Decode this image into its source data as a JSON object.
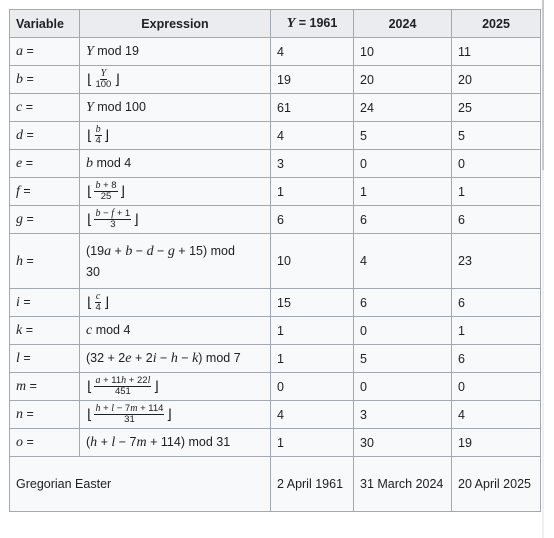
{
  "headers": [
    "Variable",
    "Expression",
    "Y = 1961",
    "2024",
    "2025"
  ],
  "rows": [
    {
      "var": "a =",
      "expr": "Y mod 19",
      "v1961": "4",
      "v2024": "10",
      "v2025": "11"
    },
    {
      "var": "b =",
      "expr_num": "Y",
      "expr_den": "100",
      "v1961": "19",
      "v2024": "20",
      "v2025": "20"
    },
    {
      "var": "c =",
      "expr": "Y mod 100",
      "v1961": "61",
      "v2024": "24",
      "v2025": "25"
    },
    {
      "var": "d =",
      "expr_num": "b",
      "expr_den": "4",
      "v1961": "4",
      "v2024": "5",
      "v2025": "5"
    },
    {
      "var": "e =",
      "expr": "b mod 4",
      "v1961": "3",
      "v2024": "0",
      "v2025": "0"
    },
    {
      "var": "f =",
      "expr_num": "b + 8",
      "expr_den": "25",
      "v1961": "1",
      "v2024": "1",
      "v2025": "1"
    },
    {
      "var": "g =",
      "expr_num": "b − f + 1",
      "expr_den": "3",
      "v1961": "6",
      "v2024": "6",
      "v2025": "6"
    },
    {
      "var": "h =",
      "expr": "(19a + b − d − g + 15) mod 30",
      "v1961": "10",
      "v2024": "4",
      "v2025": "23"
    },
    {
      "var": "i =",
      "expr_num": "c",
      "expr_den": "4",
      "v1961": "15",
      "v2024": "6",
      "v2025": "6"
    },
    {
      "var": "k =",
      "expr": "c mod 4",
      "v1961": "1",
      "v2024": "0",
      "v2025": "1"
    },
    {
      "var": "l =",
      "expr": "(32 + 2e + 2i − h − k) mod 7",
      "v1961": "1",
      "v2024": "5",
      "v2025": "6"
    },
    {
      "var": "m =",
      "expr_num": "a + 11h + 22l",
      "expr_den": "451",
      "v1961": "0",
      "v2024": "0",
      "v2025": "0"
    },
    {
      "var": "n =",
      "expr_num": "h + l − 7m + 114",
      "expr_den": "31",
      "v1961": "4",
      "v2024": "3",
      "v2025": "4"
    },
    {
      "var": "o =",
      "expr": "(h + l − 7m + 114) mod 31",
      "v1961": "1",
      "v2024": "30",
      "v2025": "19"
    }
  ],
  "footer": {
    "label": "Gregorian Easter",
    "v1961": "2 April 1961",
    "v2024": "31 March 2024",
    "v2025": "20 April 2025"
  }
}
